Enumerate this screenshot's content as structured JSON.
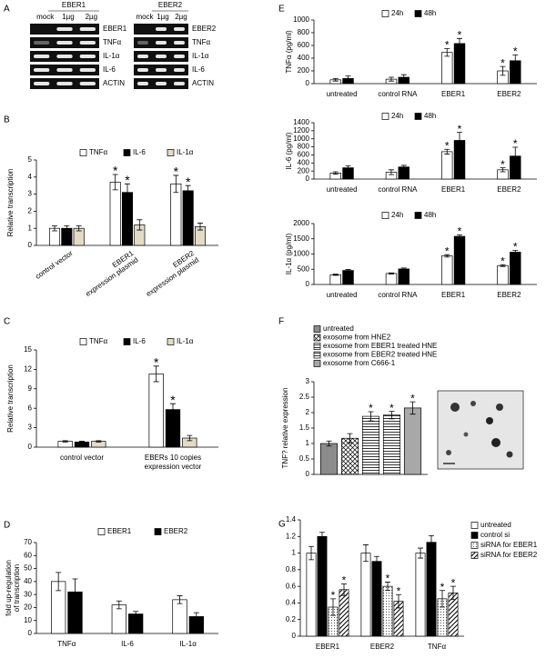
{
  "panel_labels": [
    "A",
    "B",
    "C",
    "D",
    "E",
    "F",
    "G"
  ],
  "gels": [
    {
      "title": "EBER1",
      "lanes": [
        "mock",
        "1µg",
        "2µg"
      ],
      "bands": [
        "EBER1",
        "TNFα",
        "IL-1α",
        "IL-6",
        "ACTIN"
      ]
    },
    {
      "title": "EBER2",
      "lanes": [
        "mock",
        "1µg",
        "2µg"
      ],
      "bands": [
        "EBER2",
        "TNFα",
        "IL-1α",
        "IL-6",
        "ACTIN"
      ]
    }
  ],
  "chart_data": [
    {
      "type": "bar",
      "ylabel": "Relative transcription",
      "categories": [
        [
          "control vector"
        ],
        [
          "EBER1",
          "expression plasmid"
        ],
        [
          "EBER2",
          "expression plasmid"
        ]
      ],
      "ylim": [
        0,
        5
      ],
      "yticks": [
        0,
        1,
        2,
        3,
        4,
        5
      ],
      "series": [
        {
          "name": "TNFα",
          "color": "#ffffff",
          "values": [
            1.0,
            3.7,
            3.6
          ],
          "errors": [
            0.15,
            0.45,
            0.5
          ],
          "significance": [
            null,
            "*",
            "*"
          ]
        },
        {
          "name": "IL-6",
          "color": "#000000",
          "values": [
            1.0,
            3.1,
            3.2
          ],
          "errors": [
            0.15,
            0.5,
            0.3
          ],
          "significance": [
            null,
            "*",
            "*"
          ]
        },
        {
          "name": "IL-1α",
          "color": "#e2dcc6",
          "values": [
            1.0,
            1.2,
            1.1
          ],
          "errors": [
            0.15,
            0.3,
            0.2
          ],
          "significance": [
            null,
            null,
            null
          ]
        }
      ]
    },
    {
      "type": "bar",
      "ylabel": "Relative transcription",
      "categories": [
        [
          "control vector"
        ],
        [
          "EBERs 10  copies",
          "expression vector"
        ]
      ],
      "ylim": [
        0,
        15
      ],
      "yticks": [
        0,
        3,
        6,
        9,
        12,
        15
      ],
      "series": [
        {
          "name": "TNFα",
          "color": "#ffffff",
          "values": [
            0.9,
            11.3
          ],
          "errors": [
            0.1,
            1.2
          ],
          "significance": [
            null,
            "*"
          ]
        },
        {
          "name": "IL-6",
          "color": "#000000",
          "values": [
            0.8,
            5.8
          ],
          "errors": [
            0.1,
            0.9
          ],
          "significance": [
            null,
            "*"
          ]
        },
        {
          "name": "IL-1α",
          "color": "#e2dcc6",
          "values": [
            0.9,
            1.4
          ],
          "errors": [
            0.1,
            0.4
          ],
          "significance": [
            null,
            null
          ]
        }
      ]
    },
    {
      "type": "bar",
      "ylabel": [
        "fold up-regulation",
        "of transcription"
      ],
      "categories": [
        "TNFα",
        "IL-6",
        "IL-1α"
      ],
      "ylim": [
        0,
        70
      ],
      "yticks": [
        0,
        10,
        20,
        30,
        40,
        50,
        60,
        70
      ],
      "series": [
        {
          "name": "EBER1",
          "color": "#ffffff",
          "values": [
            40,
            22,
            26
          ],
          "errors": [
            7,
            3,
            3
          ]
        },
        {
          "name": "EBER2",
          "color": "#000000",
          "values": [
            32,
            15,
            13
          ],
          "errors": [
            10,
            2,
            3
          ]
        }
      ]
    },
    {
      "type": "bar",
      "ylabel": "TNFα (pg/ml)",
      "categories": [
        "untreated",
        "control RNA",
        "EBER1",
        "EBER2"
      ],
      "ylim": [
        0,
        1000
      ],
      "yticks": [
        0,
        200,
        400,
        600,
        800,
        1000
      ],
      "series": [
        {
          "name": "24h",
          "color": "#ffffff",
          "values": [
            60,
            70,
            490,
            200
          ],
          "errors": [
            20,
            30,
            60,
            70
          ],
          "significance": [
            null,
            null,
            "*",
            "*"
          ]
        },
        {
          "name": "48h",
          "color": "#000000",
          "values": [
            80,
            100,
            630,
            360
          ],
          "errors": [
            40,
            40,
            80,
            90
          ],
          "significance": [
            null,
            null,
            "*",
            "*"
          ]
        }
      ]
    },
    {
      "type": "bar",
      "ylabel": "IL-6 (pg/ml)",
      "categories": [
        "untreated",
        "control RNA",
        "EBER1",
        "EBER2"
      ],
      "ylim": [
        0,
        1400
      ],
      "yticks": [
        0,
        200,
        400,
        600,
        800,
        1000,
        1200,
        1400
      ],
      "series": [
        {
          "name": "24h",
          "color": "#ffffff",
          "values": [
            150,
            170,
            680,
            230
          ],
          "errors": [
            30,
            60,
            60,
            50
          ],
          "significance": [
            null,
            null,
            "*",
            "*"
          ]
        },
        {
          "name": "48h",
          "color": "#000000",
          "values": [
            280,
            300,
            960,
            570
          ],
          "errors": [
            50,
            40,
            200,
            220
          ],
          "significance": [
            null,
            null,
            "*",
            "*"
          ]
        }
      ]
    },
    {
      "type": "bar",
      "ylabel": "IL-1α (pg/ml)",
      "categories": [
        "untreated",
        "control RNA",
        "EBER1",
        "EBER2"
      ],
      "ylim": [
        0,
        2000
      ],
      "yticks": [
        0,
        500,
        1000,
        1500,
        2000
      ],
      "series": [
        {
          "name": "24h",
          "color": "#ffffff",
          "values": [
            320,
            360,
            940,
            620
          ],
          "errors": [
            20,
            20,
            40,
            30
          ],
          "significance": [
            null,
            null,
            "*",
            "*"
          ]
        },
        {
          "name": "48h",
          "color": "#000000",
          "values": [
            460,
            510,
            1580,
            1060
          ],
          "errors": [
            30,
            30,
            50,
            60
          ],
          "significance": [
            null,
            null,
            "*",
            "*"
          ]
        }
      ]
    },
    {
      "type": "bar",
      "ylabel": "TNF? relative expression",
      "categories": [
        null
      ],
      "ylim": [
        0,
        3
      ],
      "yticks": [
        0,
        0.5,
        1,
        1.5,
        2,
        2.5,
        3
      ],
      "series": [
        {
          "name": "untreated",
          "color": "#8c8c8c",
          "values": [
            1.0
          ],
          "errors": [
            0.08
          ],
          "significance": [
            null
          ]
        },
        {
          "name": "exosome from HNE2",
          "color": "#ffffff",
          "pattern": "cross",
          "values": [
            1.17
          ],
          "errors": [
            0.15
          ],
          "significance": [
            null
          ]
        },
        {
          "name": "exosome from EBER1 treated HNE",
          "color": "#ffffff",
          "pattern": "horizontal",
          "values": [
            1.88
          ],
          "errors": [
            0.15
          ],
          "significance": [
            "*"
          ]
        },
        {
          "name": "exosome from EBER2 treated HNE",
          "color": "#ffffff",
          "pattern": "horizontal",
          "values": [
            1.92
          ],
          "errors": [
            0.12
          ],
          "significance": [
            "*"
          ]
        },
        {
          "name": "exosome from C666-1",
          "color": "#a8a8a8",
          "values": [
            2.15
          ],
          "errors": [
            0.2
          ],
          "significance": [
            "*"
          ]
        }
      ]
    },
    {
      "type": "bar",
      "categories": [
        "EBER1",
        "EBER2",
        "TNFα"
      ],
      "ylim": [
        0,
        1.4
      ],
      "yticks": [
        0,
        0.2,
        0.4,
        0.6,
        0.8,
        1,
        1.2,
        1.4
      ],
      "series": [
        {
          "name": "untreated",
          "color": "#ffffff",
          "values": [
            1.0,
            1.0,
            1.0
          ],
          "errors": [
            0.08,
            0.1,
            0.06
          ],
          "significance": [
            null,
            null,
            null
          ]
        },
        {
          "name": "control si",
          "color": "#000000",
          "values": [
            1.2,
            0.9,
            1.13
          ],
          "errors": [
            0.05,
            0.06,
            0.08
          ],
          "significance": [
            null,
            null,
            null
          ]
        },
        {
          "name": "siRNA for EBER1",
          "color": "#ffffff",
          "pattern": "dots",
          "values": [
            0.35,
            0.6,
            0.45
          ],
          "errors": [
            0.1,
            0.05,
            0.1
          ],
          "significance": [
            "*",
            "*",
            "*"
          ]
        },
        {
          "name": "siRNA for EBER2",
          "color": "#ffffff",
          "pattern": "diagonal",
          "values": [
            0.56,
            0.42,
            0.52
          ],
          "errors": [
            0.07,
            0.08,
            0.08
          ],
          "significance": [
            "*",
            "*",
            "*"
          ]
        }
      ]
    }
  ]
}
